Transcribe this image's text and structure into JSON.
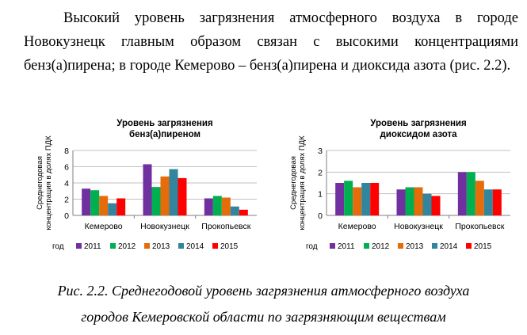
{
  "paragraph": "Высокий уровень загрязнения атмосферного воздуха в городе Новокузнецк главным образом связан с высокими концентрациями бенз(а)пирена; в городе Кемерово – бенз(а)пирена и диоксида азота (рис. 2.2).",
  "caption": {
    "line1": "Рис. 2.2. Среднегодовой уровень загрязнения атмосферного воздуха",
    "line2": "городов Кемеровской области по загрязняющим веществам"
  },
  "colors": {
    "2011": "#7030a0",
    "2012": "#00b050",
    "2013": "#e46c0a",
    "2014": "#31859c",
    "2015": "#ff0000",
    "grid": "#c0c0c0",
    "axis": "#7f7f7f"
  },
  "chart_data": [
    {
      "type": "bar",
      "title_lines": [
        "Уровень загрязнения",
        "бенз(а)пиреном"
      ],
      "ylabel_lines": [
        "Среднегодовая",
        "концентрация в долях ПДК"
      ],
      "xlabel": "",
      "categories": [
        "Кемерово",
        "Новокузнецк",
        "Прокопьевск"
      ],
      "ylim": [
        0,
        8
      ],
      "yticks": [
        "0",
        "2",
        "4",
        "6",
        "8"
      ],
      "legend_prefix": "год",
      "legend_position": "bottom",
      "grid": true,
      "series": [
        {
          "name": "2011",
          "values": [
            3.3,
            6.3,
            2.1
          ]
        },
        {
          "name": "2012",
          "values": [
            3.1,
            3.5,
            2.4
          ]
        },
        {
          "name": "2013",
          "values": [
            2.4,
            4.8,
            2.2
          ]
        },
        {
          "name": "2014",
          "values": [
            1.5,
            5.7,
            1.1
          ]
        },
        {
          "name": "2015",
          "values": [
            2.1,
            4.6,
            0.7
          ]
        }
      ]
    },
    {
      "type": "bar",
      "title_lines": [
        "Уровень загрязнения",
        "диоксидом азота"
      ],
      "ylabel_lines": [
        "Среднегодовая",
        "концентрация в долях ПДК"
      ],
      "xlabel": "",
      "categories": [
        "Кемерово",
        "Новокузнецк",
        "Прокопьевск"
      ],
      "ylim": [
        0,
        3
      ],
      "yticks": [
        "0",
        "1",
        "2",
        "3"
      ],
      "legend_prefix": "год",
      "legend_position": "bottom",
      "grid": true,
      "series": [
        {
          "name": "2011",
          "values": [
            1.5,
            1.2,
            2.0
          ]
        },
        {
          "name": "2012",
          "values": [
            1.6,
            1.3,
            2.0
          ]
        },
        {
          "name": "2013",
          "values": [
            1.3,
            1.3,
            1.6
          ]
        },
        {
          "name": "2014",
          "values": [
            1.5,
            1.0,
            1.2
          ]
        },
        {
          "name": "2015",
          "values": [
            1.5,
            0.9,
            1.2
          ]
        }
      ]
    }
  ]
}
